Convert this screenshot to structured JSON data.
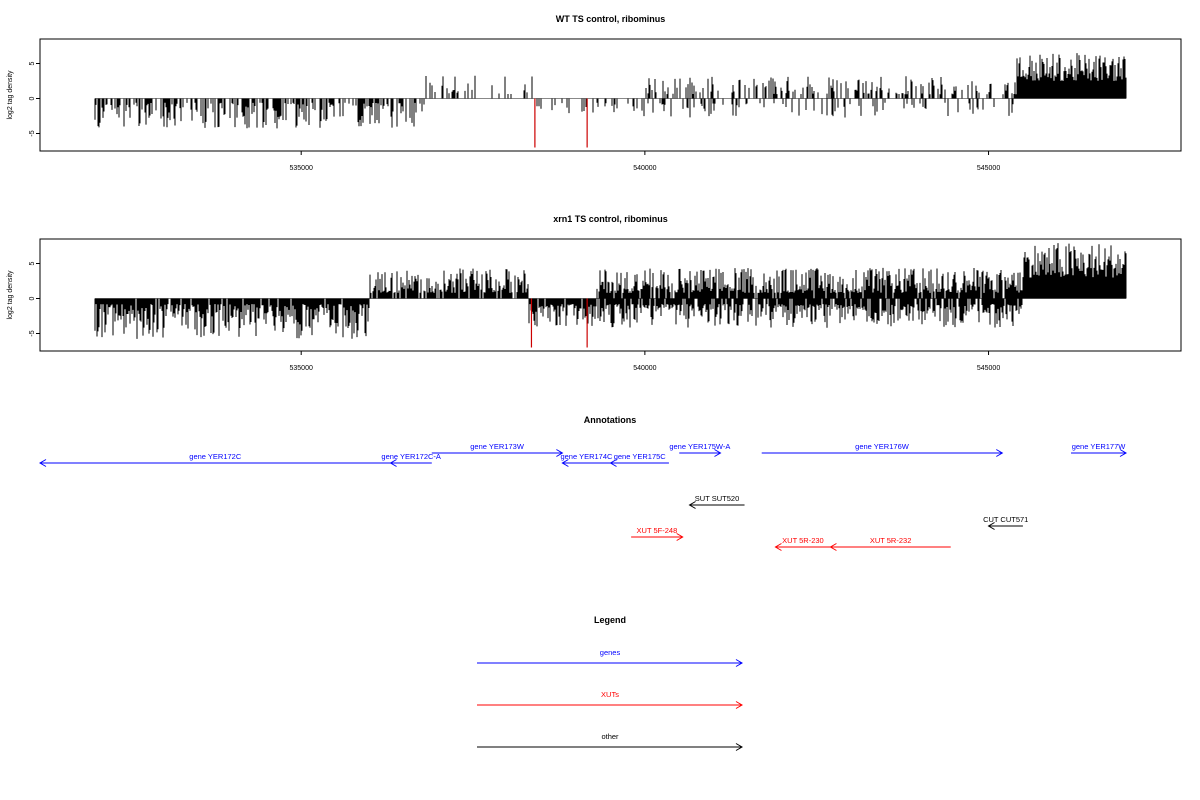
{
  "chart_data": [
    {
      "type": "bar",
      "title": "WT TS control, ribominus",
      "ylabel": "log2 tag density",
      "xlabel": "",
      "xlim": [
        531200,
        547800
      ],
      "ylim": [
        -7.5,
        8.5
      ],
      "xticks": [
        535000,
        540000,
        545000
      ],
      "xtick_labels": [
        "535000",
        "540000",
        "545000"
      ],
      "yticks": [
        -5,
        0,
        5
      ],
      "ytick_labels": [
        "-5",
        "0",
        "5"
      ],
      "data_range": [
        532000,
        547000
      ],
      "segments": [
        {
          "from": 532000,
          "to": 536800,
          "sign": -1,
          "density": 0.55,
          "min": 0.6,
          "max": 4.3
        },
        {
          "from": 536800,
          "to": 538400,
          "sign": 1,
          "density": 0.22,
          "min": 0.6,
          "max": 3.4
        },
        {
          "from": 538400,
          "to": 541200,
          "sign": -1,
          "density": 0.22,
          "min": 0.6,
          "max": 2.6
        },
        {
          "from": 540000,
          "to": 545400,
          "sign": 1,
          "density": 0.35,
          "min": 0.6,
          "max": 3.2
        },
        {
          "from": 540500,
          "to": 545400,
          "sign": -1,
          "density": 0.15,
          "min": 0.6,
          "max": 2.8
        },
        {
          "from": 545400,
          "to": 547000,
          "sign": 1,
          "density": 1.0,
          "min": 2.5,
          "max": 6.5
        }
      ],
      "highlights": [
        {
          "x": 538400,
          "value": -7.0,
          "color": "#cc0000"
        },
        {
          "x": 539160,
          "value": -7.0,
          "color": "#cc0000"
        }
      ]
    },
    {
      "type": "bar",
      "title": "xrn1 TS control, ribominus",
      "ylabel": "log2 tag density",
      "xlabel": "",
      "xlim": [
        531200,
        547800
      ],
      "ylim": [
        -7.5,
        8.5
      ],
      "xticks": [
        535000,
        540000,
        545000
      ],
      "xtick_labels": [
        "535000",
        "540000",
        "545000"
      ],
      "yticks": [
        -5,
        0,
        5
      ],
      "ytick_labels": [
        "-5",
        "0",
        "5"
      ],
      "data_range": [
        532000,
        547000
      ],
      "segments": [
        {
          "from": 532000,
          "to": 536000,
          "sign": -1,
          "density": 0.95,
          "min": 0.8,
          "max": 5.8
        },
        {
          "from": 536000,
          "to": 538300,
          "sign": 1,
          "density": 0.9,
          "min": 0.8,
          "max": 4.3
        },
        {
          "from": 538300,
          "to": 539300,
          "sign": -1,
          "density": 0.95,
          "min": 0.8,
          "max": 4.0
        },
        {
          "from": 539300,
          "to": 545500,
          "sign": 1,
          "density": 0.9,
          "min": 0.8,
          "max": 4.4
        },
        {
          "from": 539300,
          "to": 545500,
          "sign": -1,
          "density": 0.8,
          "min": 0.8,
          "max": 4.2
        },
        {
          "from": 545500,
          "to": 547000,
          "sign": 1,
          "density": 1.0,
          "min": 3.0,
          "max": 8.1
        }
      ],
      "highlights": [
        {
          "x": 538350,
          "value": -7.0,
          "color": "#cc0000"
        },
        {
          "x": 539160,
          "value": -7.0,
          "color": "#cc0000"
        }
      ]
    }
  ],
  "annotations": {
    "title": "Annotations",
    "xlim": [
      531200,
      547800
    ],
    "features": [
      {
        "label": "gene YER172C",
        "from": 531200,
        "to": 536300,
        "strand": "-",
        "row": 1,
        "color": "#0000ff"
      },
      {
        "label": "gene YER172C-A",
        "from": 536300,
        "to": 536900,
        "strand": "-",
        "row": 1,
        "color": "#0000ff"
      },
      {
        "label": "gene YER173W",
        "from": 536900,
        "to": 538800,
        "strand": "+",
        "row": 0,
        "color": "#0000ff"
      },
      {
        "label": "gene YER174C",
        "from": 538800,
        "to": 539500,
        "strand": "-",
        "row": 1,
        "color": "#0000ff"
      },
      {
        "label": "gene YER175C",
        "from": 539500,
        "to": 540350,
        "strand": "-",
        "row": 1,
        "color": "#0000ff"
      },
      {
        "label": "gene YER175W-A",
        "from": 540500,
        "to": 541100,
        "strand": "+",
        "row": 0,
        "color": "#0000ff"
      },
      {
        "label": "gene YER176W",
        "from": 541700,
        "to": 545200,
        "strand": "+",
        "row": 0,
        "color": "#0000ff"
      },
      {
        "label": "gene YER177W",
        "from": 546200,
        "to": 547000,
        "strand": "+",
        "row": 0,
        "color": "#0000ff"
      },
      {
        "label": "SUT SUT520",
        "from": 540650,
        "to": 541450,
        "strand": "-",
        "row": 4,
        "color": "#000000"
      },
      {
        "label": "CUT CUT571",
        "from": 545000,
        "to": 545500,
        "strand": "-",
        "row": 5,
        "color": "#000000"
      },
      {
        "label": "XUT 5F-248",
        "from": 539800,
        "to": 540550,
        "strand": "+",
        "row": 6,
        "color": "#ff0000"
      },
      {
        "label": "XUT 5R-230",
        "from": 541900,
        "to": 542700,
        "strand": "-",
        "row": 7,
        "color": "#ff0000"
      },
      {
        "label": "XUT 5R-232",
        "from": 542700,
        "to": 544450,
        "strand": "-",
        "row": 7,
        "color": "#ff0000"
      }
    ]
  },
  "legend": {
    "title": "Legend",
    "items": [
      {
        "label": "genes",
        "color": "#0000ff"
      },
      {
        "label": "XUTs",
        "color": "#ff0000"
      },
      {
        "label": "other",
        "color": "#000000"
      }
    ]
  }
}
